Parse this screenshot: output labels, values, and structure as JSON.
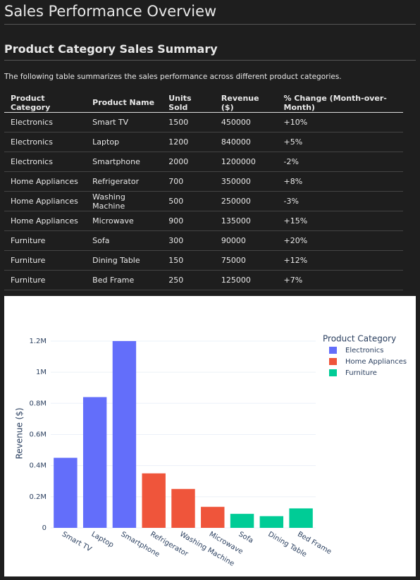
{
  "header": {
    "title": "Sales Performance Overview"
  },
  "section": {
    "title": "Product Category Sales Summary",
    "intro": "The following table summarizes the sales performance across different product categories."
  },
  "table": {
    "columns": [
      "Product Category",
      "Product Name",
      "Units Sold",
      "Revenue ($)",
      "% Change (Month-over-Month)"
    ],
    "rows": [
      [
        "Electronics",
        "Smart TV",
        1500,
        450000,
        "+10%"
      ],
      [
        "Electronics",
        "Laptop",
        1200,
        840000,
        "+5%"
      ],
      [
        "Electronics",
        "Smartphone",
        2000,
        1200000,
        "-2%"
      ],
      [
        "Home Appliances",
        "Refrigerator",
        700,
        350000,
        "+8%"
      ],
      [
        "Home Appliances",
        "Washing Machine",
        500,
        250000,
        "-3%"
      ],
      [
        "Home Appliances",
        "Microwave",
        900,
        135000,
        "+15%"
      ],
      [
        "Furniture",
        "Sofa",
        300,
        90000,
        "+20%"
      ],
      [
        "Furniture",
        "Dining Table",
        150,
        75000,
        "+12%"
      ],
      [
        "Furniture",
        "Bed Frame",
        250,
        125000,
        "+7%"
      ]
    ]
  },
  "chart_data": {
    "type": "bar",
    "y_label": "Revenue ($)",
    "legend_title": "Product Category",
    "legend": "right",
    "categories": [
      "Smart TV",
      "Laptop",
      "Smartphone",
      "Refrigerator",
      "Washing Machine",
      "Microwave",
      "Sofa",
      "Dining Table",
      "Bed Frame"
    ],
    "series": [
      {
        "name": "Electronics",
        "color": "#636efa",
        "values": [
          450000,
          840000,
          1200000,
          null,
          null,
          null,
          null,
          null,
          null
        ]
      },
      {
        "name": "Home Appliances",
        "color": "#ef553b",
        "values": [
          null,
          null,
          null,
          350000,
          250000,
          135000,
          null,
          null,
          null
        ]
      },
      {
        "name": "Furniture",
        "color": "#00cc96",
        "values": [
          null,
          null,
          null,
          null,
          null,
          null,
          90000,
          75000,
          125000
        ]
      }
    ],
    "ylim": [
      0,
      1263158
    ],
    "yticks": [
      0,
      {
        "value": 200000,
        "label": "0.2M"
      },
      {
        "value": 400000,
        "label": "0.4M"
      },
      {
        "value": 600000,
        "label": "0.6M"
      },
      {
        "value": 800000,
        "label": "0.8M"
      },
      {
        "value": 1000000,
        "label": "1M"
      },
      {
        "value": 1200000,
        "label": "1.2M"
      }
    ],
    "grid": true
  }
}
